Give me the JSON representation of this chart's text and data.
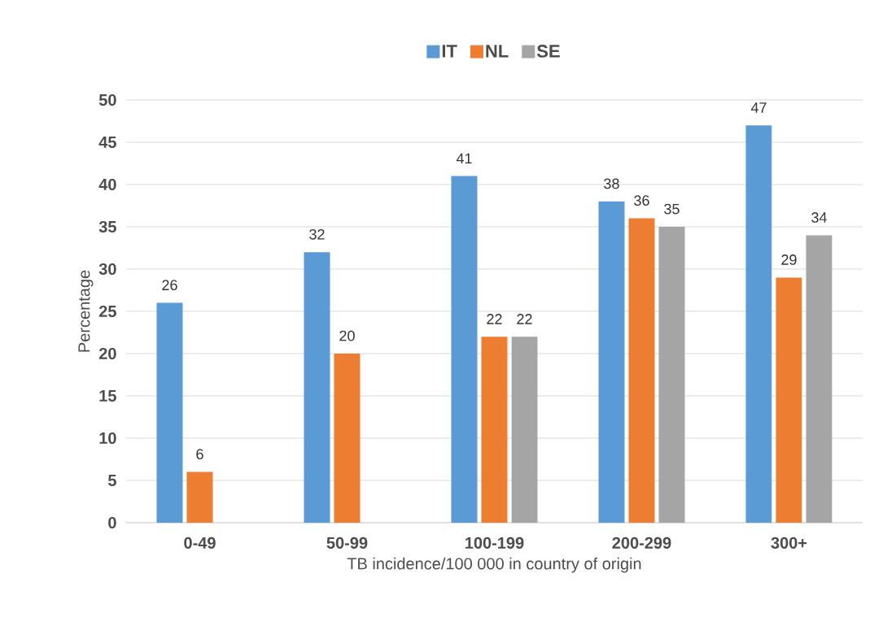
{
  "chart_data": {
    "type": "bar",
    "xlabel": "TB incidence/100 000 in country of origin",
    "ylabel": "Percentage",
    "categories": [
      "0-49",
      "50-99",
      "100-199",
      "200-299",
      "300+"
    ],
    "series": [
      {
        "name": "IT",
        "color": "#5b9bd5",
        "values": [
          26,
          32,
          41,
          38,
          47
        ]
      },
      {
        "name": "NL",
        "color": "#ed7d31",
        "values": [
          6,
          20,
          22,
          36,
          29
        ]
      },
      {
        "name": "SE",
        "color": "#a5a5a5",
        "values": [
          null,
          null,
          22,
          35,
          34
        ]
      }
    ],
    "ylim": [
      0,
      50
    ],
    "yticks": [
      0,
      5,
      10,
      15,
      20,
      25,
      30,
      35,
      40,
      45,
      50
    ],
    "grid": "y",
    "legend": "top",
    "data_labels": true
  }
}
